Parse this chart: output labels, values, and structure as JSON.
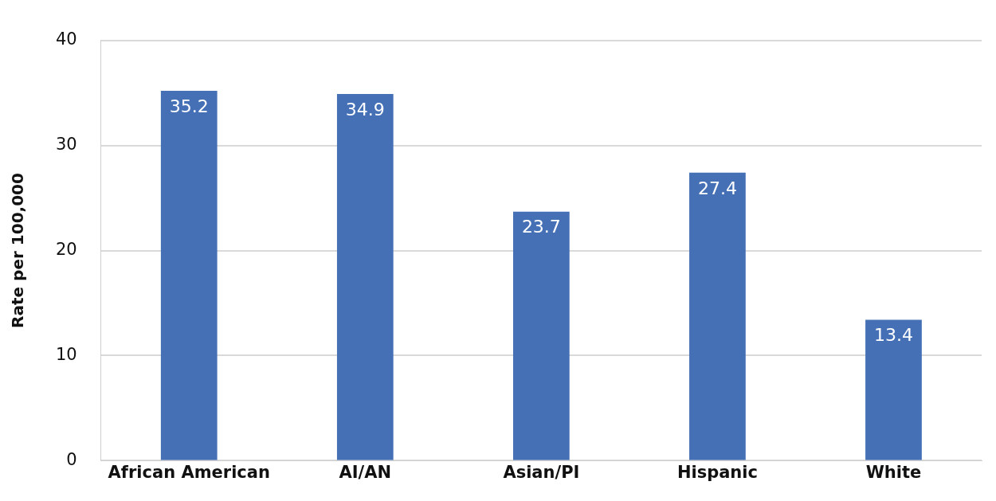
{
  "chart_data": {
    "type": "bar",
    "ylabel": "Rate per 100,000",
    "categories": [
      "African American",
      "AI/AN",
      "Asian/PI",
      "Hispanic",
      "White"
    ],
    "values": [
      35.2,
      34.9,
      23.7,
      27.4,
      13.4
    ],
    "color": "#4570b6",
    "ylim": [
      0,
      40
    ],
    "yticks": [
      0,
      10,
      20,
      30,
      40
    ],
    "grid": "y",
    "data_labels": true,
    "legend": false
  }
}
